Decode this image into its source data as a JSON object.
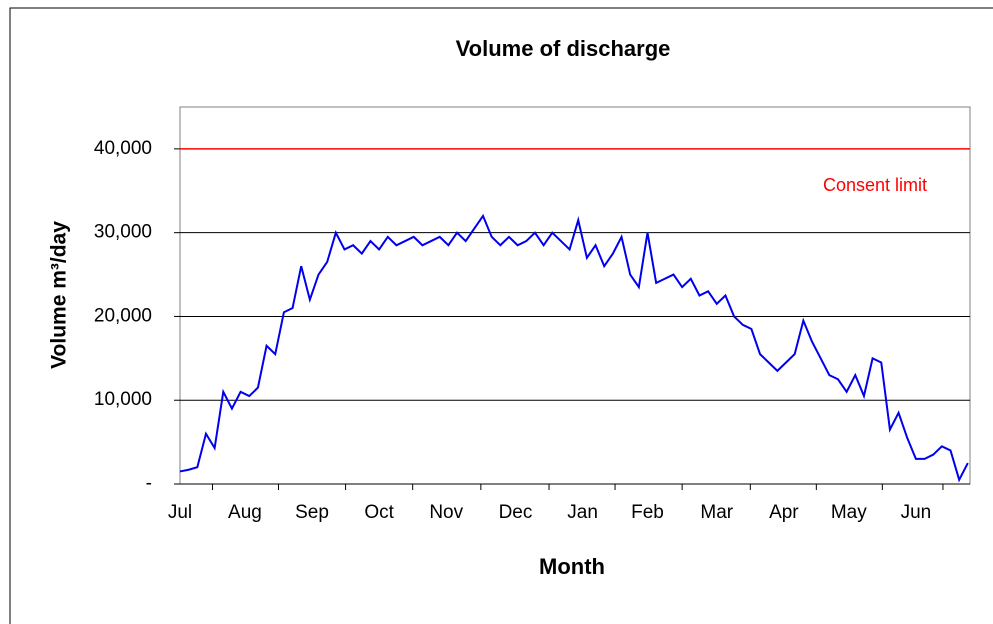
{
  "chart_data": {
    "type": "line",
    "title": "Volume of discharge",
    "xlabel": "Month",
    "ylabel": "Volume m³/day",
    "xlim": [
      0,
      365
    ],
    "xticks": [
      {
        "value": 0,
        "label": "Jul"
      },
      {
        "value": 30,
        "label": "Aug"
      },
      {
        "value": 61,
        "label": "Sep"
      },
      {
        "value": 92,
        "label": "Oct"
      },
      {
        "value": 123,
        "label": "Nov"
      },
      {
        "value": 155,
        "label": "Dec"
      },
      {
        "value": 186,
        "label": "Jan"
      },
      {
        "value": 216,
        "label": "Feb"
      },
      {
        "value": 248,
        "label": "Mar"
      },
      {
        "value": 279,
        "label": "Apr"
      },
      {
        "value": 309,
        "label": "May"
      },
      {
        "value": 340,
        "label": "Jun"
      }
    ],
    "ylim": [
      0,
      45000
    ],
    "yticks": [
      {
        "value": 0,
        "label": "-"
      },
      {
        "value": 10000,
        "label": "10,000"
      },
      {
        "value": 20000,
        "label": "20,000"
      },
      {
        "value": 30000,
        "label": "30,000"
      },
      {
        "value": 40000,
        "label": "40,000"
      }
    ],
    "grid": true,
    "limit": {
      "value": 40000,
      "label": "Consent limit",
      "color": "#ff0000"
    },
    "x": [
      0,
      4,
      8,
      12,
      16,
      20,
      24,
      28,
      32,
      36,
      40,
      44,
      48,
      52,
      56,
      60,
      64,
      68,
      72,
      76,
      80,
      84,
      88,
      92,
      96,
      100,
      104,
      108,
      112,
      116,
      120,
      124,
      128,
      132,
      136,
      140,
      144,
      148,
      152,
      156,
      160,
      164,
      168,
      172,
      176,
      180,
      184,
      188,
      192,
      196,
      200,
      204,
      208,
      212,
      216,
      220,
      224,
      228,
      232,
      236,
      240,
      244,
      248,
      252,
      256,
      260,
      264,
      268,
      272,
      276,
      280,
      284,
      288,
      292,
      296,
      300,
      304,
      308,
      312,
      316,
      320,
      324,
      328,
      332,
      336,
      340,
      344,
      348,
      352,
      356,
      360,
      364
    ],
    "series": [
      {
        "name": "Volume",
        "color": "#0000ee",
        "values": [
          1500,
          1700,
          2000,
          6000,
          4300,
          11000,
          9000,
          11000,
          10500,
          11500,
          16500,
          15500,
          20500,
          21000,
          26000,
          22000,
          25000,
          26500,
          30000,
          28000,
          28500,
          27500,
          29000,
          28000,
          29500,
          28500,
          29000,
          29500,
          28500,
          29000,
          29500,
          28500,
          30000,
          29000,
          30500,
          32000,
          29500,
          28500,
          29500,
          28500,
          29000,
          30000,
          28500,
          30000,
          29000,
          28000,
          31500,
          27000,
          28500,
          26000,
          27500,
          29500,
          25000,
          23500,
          30000,
          24000,
          24500,
          25000,
          23500,
          24500,
          22500,
          23000,
          21500,
          22500,
          20000,
          19000,
          18500,
          15500,
          14500,
          13500,
          14500,
          15500,
          19500,
          17000,
          15000,
          13000,
          12500,
          11000,
          13000,
          10500,
          15000,
          14500,
          6500,
          8500,
          5500,
          3000,
          3000,
          3500,
          4500,
          4000,
          500,
          2500
        ]
      }
    ]
  }
}
